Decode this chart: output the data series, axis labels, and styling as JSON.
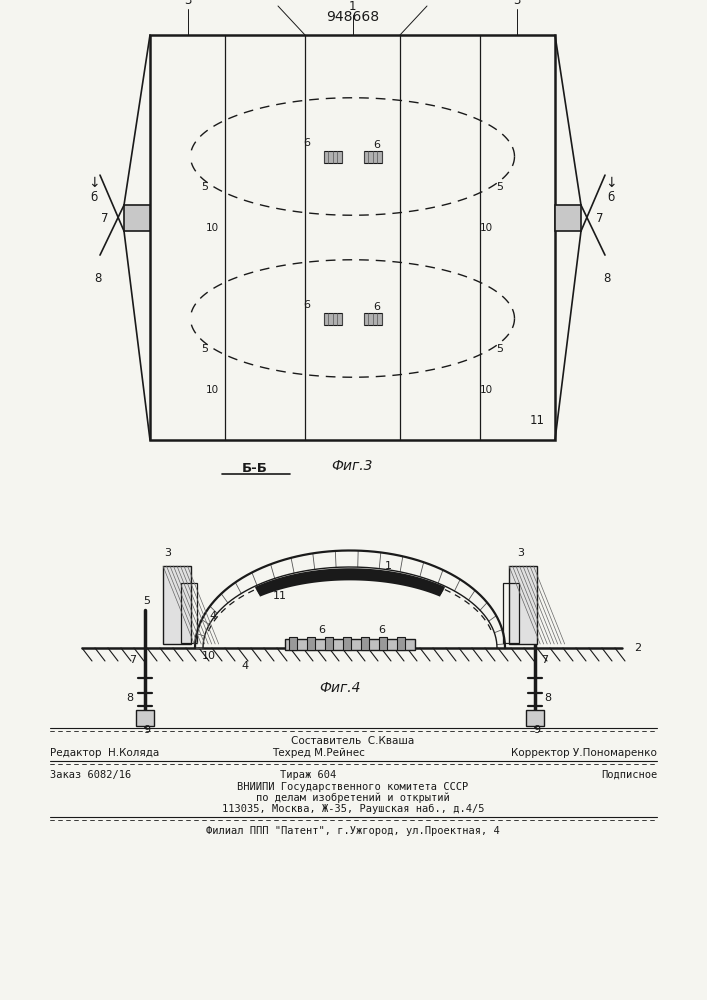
{
  "patent_number": "948668",
  "fig3_label": "Фиг.3",
  "fig4_label": "Фиг.4",
  "section_label": "Б-Б",
  "footer_line1": "Составитель  С.Кваша",
  "footer_line2_l": "Редактор  Н.Коляда",
  "footer_line2_m": "Техред М.Рейнес",
  "footer_line2_r": "Корректор У.Пономаренко",
  "footer_line3_l": "Заказ 6082/16",
  "footer_line3_m": "Тираж 604",
  "footer_line3_r": "Подписное",
  "footer_line4": "ВНИИПИ Государственного комитета СССР",
  "footer_line5": "по делам изобретений и открытий",
  "footer_line6": "113035, Москва, Ж-35, Раушская наб., д.4/5",
  "footer_line7": "Филиал ППП \"Патент\", г.Ужгород, ул.Проектная, 4",
  "bg_color": "#f5f5f0",
  "lc": "#1a1a1a"
}
